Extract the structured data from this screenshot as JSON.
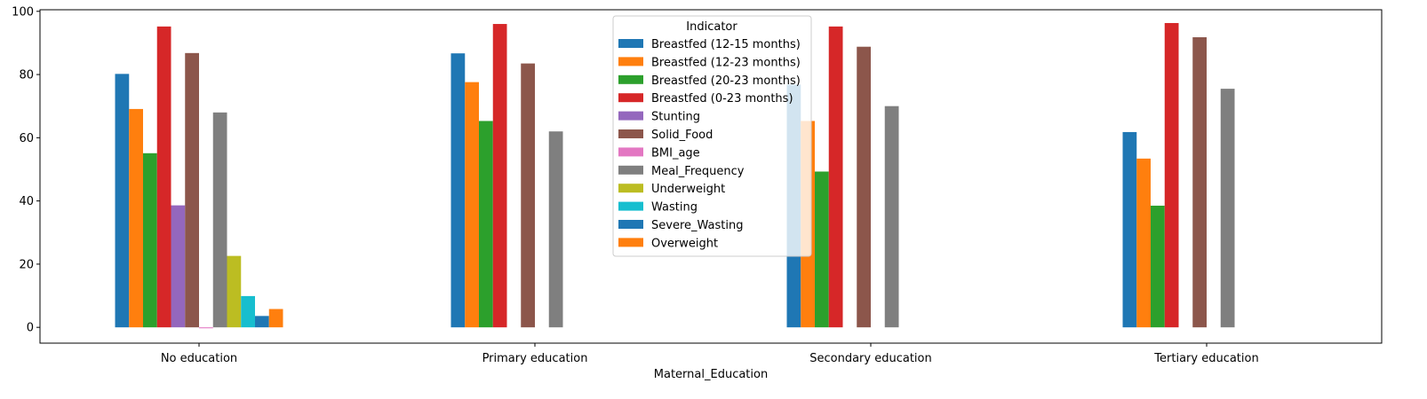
{
  "chart_data": {
    "type": "bar",
    "xlabel": "Maternal_Education",
    "ylabel": "",
    "ylim": [
      -5,
      100.5
    ],
    "yticks": [
      0,
      20,
      40,
      60,
      80,
      100
    ],
    "grid": false,
    "legend_title": "Indicator",
    "legend_position": "top-center",
    "categories": [
      "No education",
      "Primary education",
      "Secondary education",
      "Tertiary education"
    ],
    "series": [
      {
        "name": "Breastfed (12-15 months)",
        "color": "#1f77b4",
        "values": [
          80.2,
          86.7,
          76.8,
          61.8
        ]
      },
      {
        "name": "Breastfed (12-23 months)",
        "color": "#ff7f0e",
        "values": [
          69.1,
          77.6,
          65.3,
          53.4
        ]
      },
      {
        "name": "Breastfed (20-23 months)",
        "color": "#2ca02c",
        "values": [
          55.1,
          65.3,
          49.3,
          38.5
        ]
      },
      {
        "name": "Breastfed (0-23 months)",
        "color": "#d62728",
        "values": [
          95.2,
          96.0,
          95.2,
          96.3
        ]
      },
      {
        "name": "Stunting",
        "color": "#9467bd",
        "values": [
          38.6,
          null,
          null,
          null
        ]
      },
      {
        "name": "Solid_Food",
        "color": "#8c564b",
        "values": [
          86.8,
          83.5,
          88.8,
          91.8
        ]
      },
      {
        "name": "BMI_age",
        "color": "#e377c2",
        "values": [
          -0.3,
          null,
          null,
          null
        ]
      },
      {
        "name": "Meal_Frequency",
        "color": "#7f7f7f",
        "values": [
          68.0,
          62.0,
          70.0,
          75.5
        ]
      },
      {
        "name": "Underweight",
        "color": "#bcbd22",
        "values": [
          22.6,
          null,
          null,
          null
        ]
      },
      {
        "name": "Wasting",
        "color": "#17becf",
        "values": [
          9.9,
          null,
          null,
          null
        ]
      },
      {
        "name": "Severe_Wasting",
        "color": "#1f77b4",
        "values": [
          3.6,
          null,
          null,
          null
        ]
      },
      {
        "name": "Overweight",
        "color": "#ff7f0e",
        "values": [
          5.8,
          null,
          null,
          null
        ]
      }
    ]
  }
}
